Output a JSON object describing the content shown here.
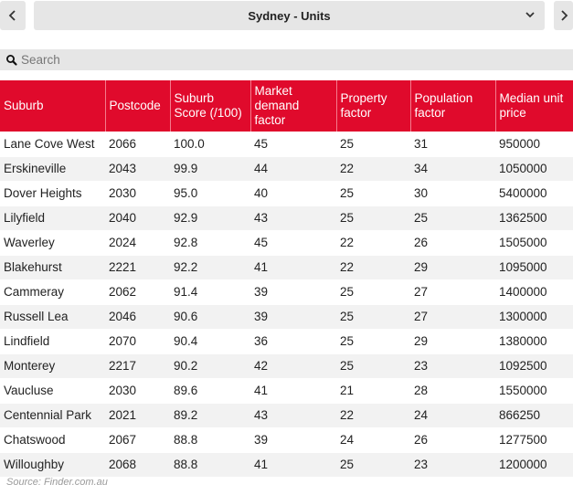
{
  "header": {
    "title": "Sydney - Units",
    "prev_icon": "chevron-left-icon",
    "next_icon": "chevron-right-icon",
    "dropdown_icon": "chevron-down-icon"
  },
  "search": {
    "placeholder": "Search",
    "value": ""
  },
  "table": {
    "columns": [
      "Suburb",
      "Postcode",
      "Suburb Score (/100)",
      "Market demand factor",
      "Property factor",
      "Population factor",
      "Median unit price"
    ],
    "rows": [
      [
        "Lane Cove West",
        "2066",
        "100.0",
        "45",
        "25",
        "31",
        "950000"
      ],
      [
        "Erskineville",
        "2043",
        "99.9",
        "44",
        "22",
        "34",
        "1050000"
      ],
      [
        "Dover Heights",
        "2030",
        "95.0",
        "40",
        "25",
        "30",
        "5400000"
      ],
      [
        "Lilyfield",
        "2040",
        "92.9",
        "43",
        "25",
        "25",
        "1362500"
      ],
      [
        "Waverley",
        "2024",
        "92.8",
        "45",
        "22",
        "26",
        "1505000"
      ],
      [
        "Blakehurst",
        "2221",
        "92.2",
        "41",
        "22",
        "29",
        "1095000"
      ],
      [
        "Cammeray",
        "2062",
        "91.4",
        "39",
        "25",
        "27",
        "1400000"
      ],
      [
        "Russell Lea",
        "2046",
        "90.6",
        "39",
        "25",
        "27",
        "1300000"
      ],
      [
        "Lindfield",
        "2070",
        "90.4",
        "36",
        "25",
        "29",
        "1380000"
      ],
      [
        "Monterey",
        "2217",
        "90.2",
        "42",
        "25",
        "23",
        "1092500"
      ],
      [
        "Vaucluse",
        "2030",
        "89.6",
        "41",
        "21",
        "28",
        "1550000"
      ],
      [
        "Centennial Park",
        "2021",
        "89.2",
        "43",
        "22",
        "24",
        "866250"
      ],
      [
        "Chatswood",
        "2067",
        "88.8",
        "39",
        "24",
        "26",
        "1277500"
      ],
      [
        "Willoughby",
        "2068",
        "88.8",
        "41",
        "25",
        "23",
        "1200000"
      ]
    ]
  },
  "footer": {
    "source": "Source: Finder.com.au"
  },
  "colors": {
    "header_bg": "#e00a2c",
    "header_text": "#ffffff",
    "stripe": "#f2f2f2",
    "control_bg": "#e6e6e6"
  }
}
